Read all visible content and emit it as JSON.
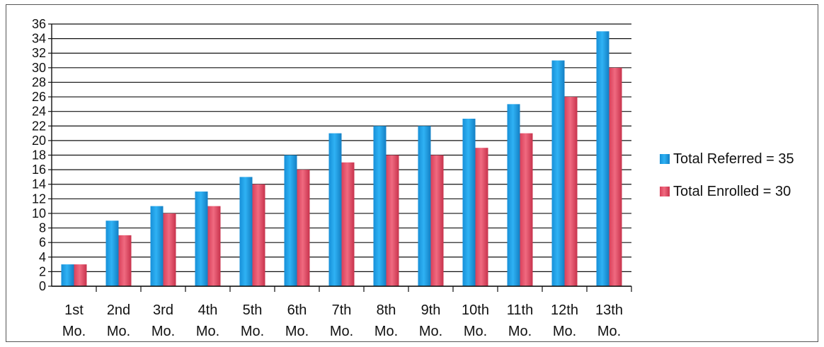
{
  "chart_data": {
    "type": "bar",
    "title": "",
    "xlabel": "",
    "ylabel": "",
    "ylim": [
      0,
      36
    ],
    "ytick_step": 2,
    "grid": true,
    "legend_position": "right",
    "categories": [
      [
        "1st",
        "Mo."
      ],
      [
        "2nd",
        "Mo."
      ],
      [
        "3rd",
        "Mo."
      ],
      [
        "4th",
        "Mo."
      ],
      [
        "5th",
        "Mo."
      ],
      [
        "6th",
        "Mo."
      ],
      [
        "7th",
        "Mo."
      ],
      [
        "8th",
        "Mo."
      ],
      [
        "9th",
        "Mo."
      ],
      [
        "10th",
        "Mo."
      ],
      [
        "11th",
        "Mo."
      ],
      [
        "12th",
        "Mo."
      ],
      [
        "13th",
        "Mo."
      ]
    ],
    "series": [
      {
        "name": "Total Referred = 35",
        "color": "#1a9ee8",
        "values": [
          3,
          9,
          11,
          13,
          15,
          18,
          21,
          22,
          22,
          23,
          25,
          31,
          35
        ]
      },
      {
        "name": "Total Enrolled = 30",
        "color": "#e8536a",
        "values": [
          3,
          7,
          10,
          11,
          14,
          16,
          17,
          18,
          18,
          19,
          21,
          26,
          30
        ]
      }
    ]
  }
}
